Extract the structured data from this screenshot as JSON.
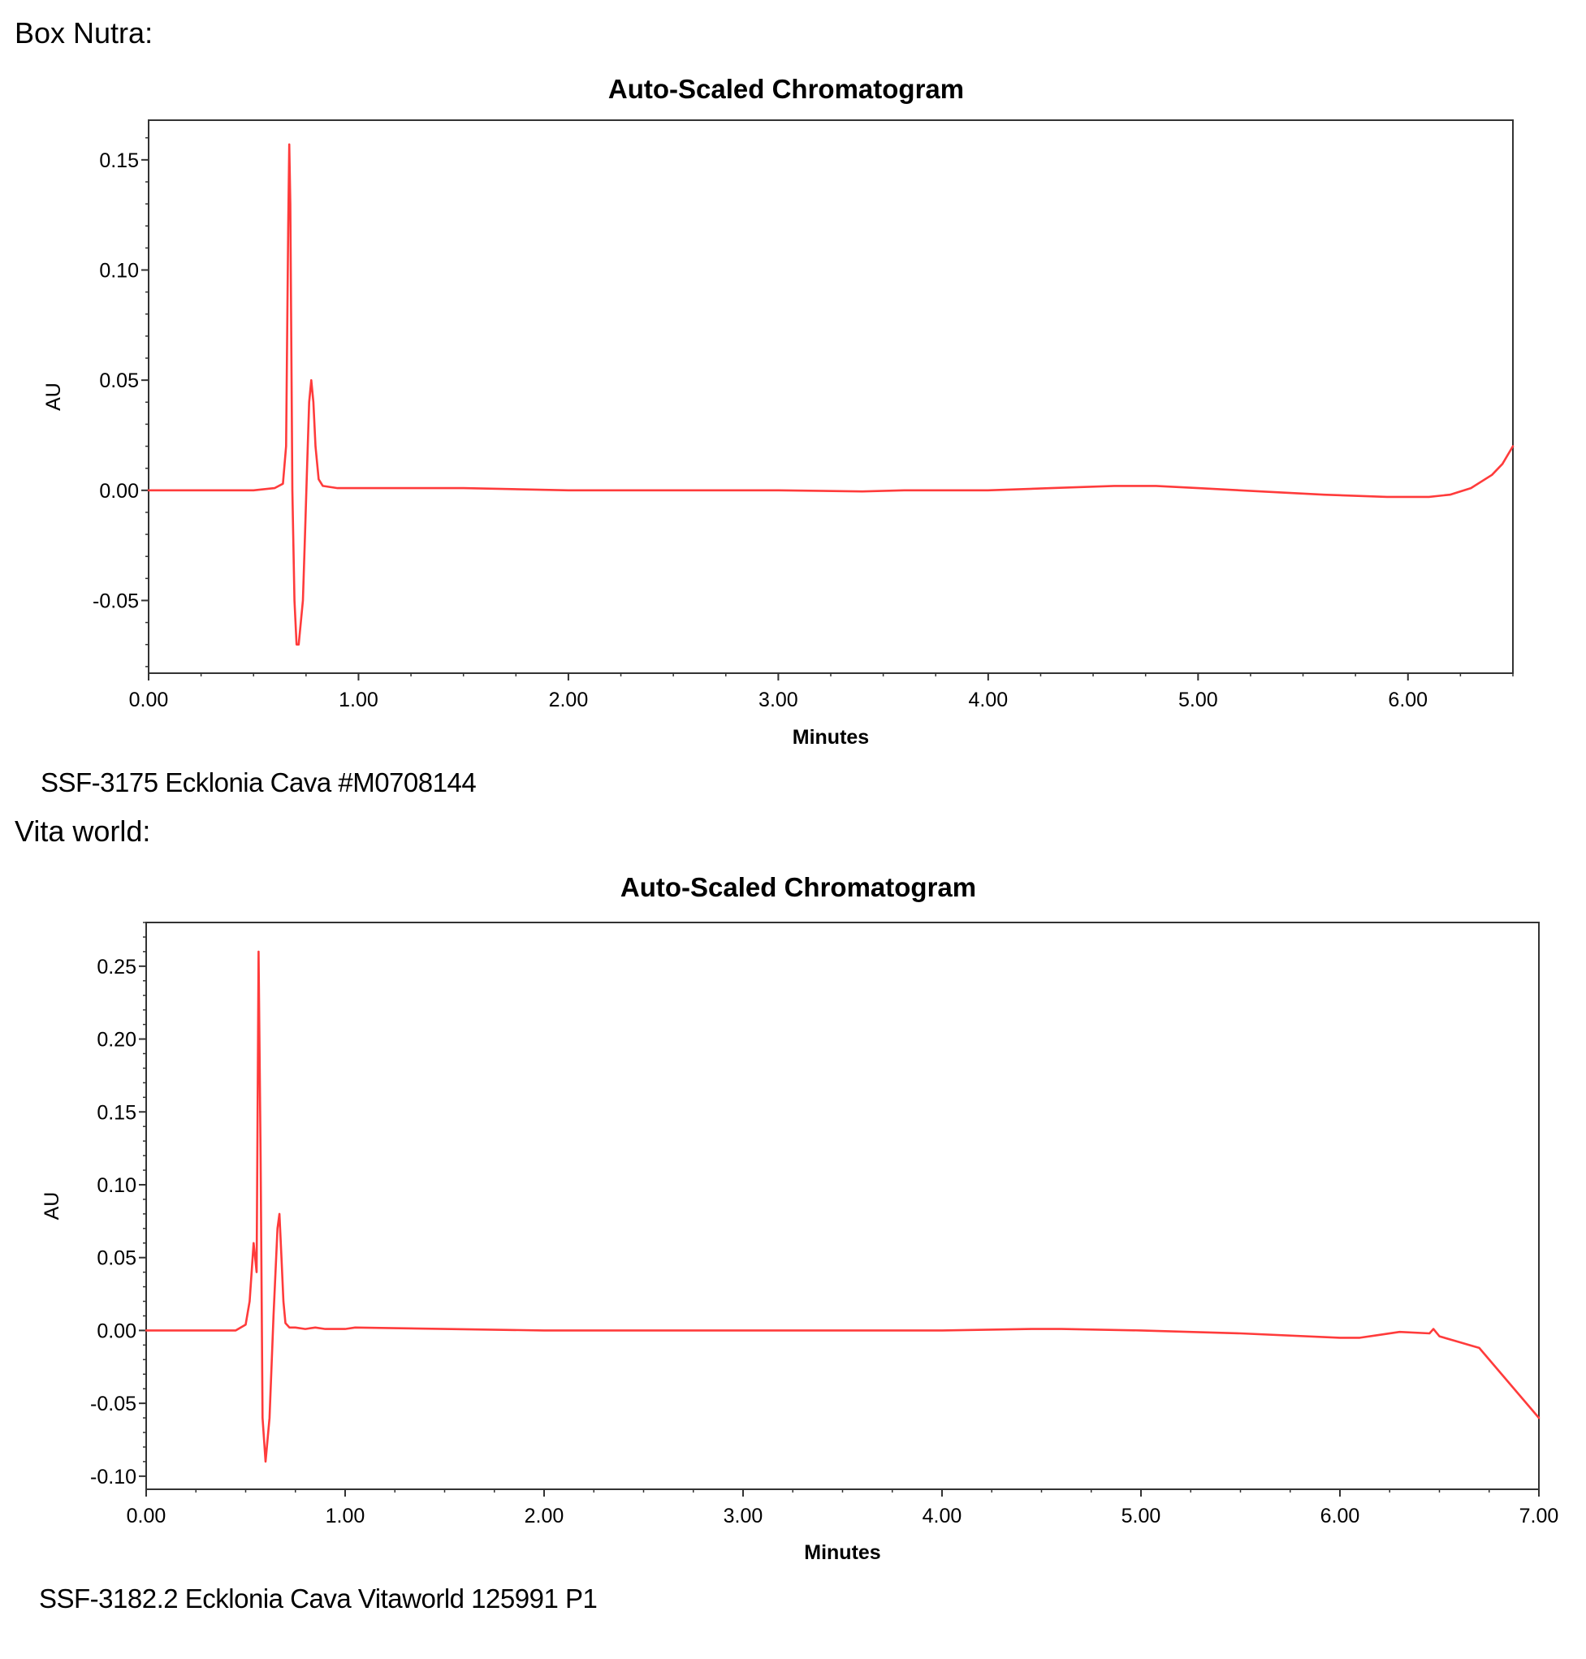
{
  "headings": {
    "first": "Box Nutra:",
    "second": "Vita world:"
  },
  "chart_data": [
    {
      "type": "line",
      "title": "Auto-Scaled Chromatogram",
      "xlabel": "Minutes",
      "ylabel": "AU",
      "xlim": [
        0,
        6.5
      ],
      "ylim": [
        -0.083,
        0.168
      ],
      "x_ticks": [
        0,
        1,
        2,
        3,
        4,
        5,
        6
      ],
      "x_tick_labels": [
        "0.00",
        "1.00",
        "2.00",
        "3.00",
        "4.00",
        "5.00",
        "6.00"
      ],
      "y_ticks": [
        0.15,
        0.1,
        0.05,
        0.0,
        -0.05
      ],
      "y_tick_labels": [
        "0.15",
        "0.10",
        "0.05",
        "0.00",
        "-0.05"
      ],
      "grid": false,
      "color": "#ff3b3b",
      "caption": "SSF-3175 Ecklonia Cava #M0708144",
      "series": [
        {
          "x": [
            0,
            0.5,
            0.6,
            0.64,
            0.655,
            0.665,
            0.67,
            0.675,
            0.685,
            0.695,
            0.705,
            0.715,
            0.725,
            0.735,
            0.745,
            0.755,
            0.765,
            0.775,
            0.785,
            0.795,
            0.81,
            0.83,
            0.9,
            1.0,
            1.5,
            2.0,
            2.5,
            3.0,
            3.4,
            3.6,
            4.0,
            4.3,
            4.6,
            4.8,
            5.0,
            5.3,
            5.6,
            5.9,
            6.1,
            6.2,
            6.3,
            6.4,
            6.45,
            6.5
          ],
          "y": [
            0.0,
            0.0,
            0.001,
            0.003,
            0.02,
            0.12,
            0.157,
            0.13,
            0.0,
            -0.05,
            -0.07,
            -0.07,
            -0.06,
            -0.05,
            -0.02,
            0.01,
            0.04,
            0.05,
            0.04,
            0.02,
            0.005,
            0.002,
            0.001,
            0.001,
            0.001,
            0.0,
            0.0,
            0.0,
            -0.0005,
            0.0,
            0.0,
            0.001,
            0.002,
            0.002,
            0.001,
            -0.0005,
            -0.002,
            -0.003,
            -0.003,
            -0.002,
            0.001,
            0.007,
            0.012,
            0.02
          ]
        }
      ]
    },
    {
      "type": "line",
      "title": "Auto-Scaled Chromatogram",
      "xlabel": "Minutes",
      "ylabel": "AU",
      "xlim": [
        0,
        7.0
      ],
      "ylim": [
        -0.109,
        0.28
      ],
      "x_ticks": [
        0,
        1,
        2,
        3,
        4,
        5,
        6,
        7
      ],
      "x_tick_labels": [
        "0.00",
        "1.00",
        "2.00",
        "3.00",
        "4.00",
        "5.00",
        "6.00",
        "7.00"
      ],
      "y_ticks": [
        0.25,
        0.2,
        0.15,
        0.1,
        0.05,
        0.0,
        -0.05,
        -0.1
      ],
      "y_tick_labels": [
        "0.25",
        "0.20",
        "0.15",
        "0.10",
        "0.05",
        "0.00",
        "-0.05",
        "-0.10"
      ],
      "grid": false,
      "color": "#ff3b3b",
      "caption": "SSF-3182.2 Ecklonia Cava Vitaworld 125991 P1",
      "series": [
        {
          "x": [
            0,
            0.45,
            0.5,
            0.52,
            0.54,
            0.555,
            0.565,
            0.575,
            0.585,
            0.6,
            0.62,
            0.64,
            0.66,
            0.67,
            0.68,
            0.69,
            0.7,
            0.72,
            0.75,
            0.8,
            0.85,
            0.9,
            1.0,
            1.05,
            1.5,
            2.0,
            3.0,
            4.0,
            4.45,
            4.6,
            5.0,
            5.5,
            6.0,
            6.1,
            6.2,
            6.3,
            6.45,
            6.47,
            6.5,
            6.6,
            6.65,
            6.7,
            7.0
          ],
          "y": [
            0.0,
            0.0,
            0.004,
            0.02,
            0.06,
            0.04,
            0.26,
            0.12,
            -0.06,
            -0.09,
            -0.06,
            0.01,
            0.07,
            0.08,
            0.05,
            0.02,
            0.005,
            0.002,
            0.002,
            0.001,
            0.002,
            0.001,
            0.001,
            0.002,
            0.001,
            0.0,
            0.0,
            0.0,
            0.001,
            0.001,
            0.0,
            -0.002,
            -0.005,
            -0.005,
            -0.003,
            -0.001,
            -0.002,
            0.001,
            -0.004,
            -0.008,
            -0.01,
            -0.012,
            -0.06
          ]
        }
      ]
    }
  ]
}
